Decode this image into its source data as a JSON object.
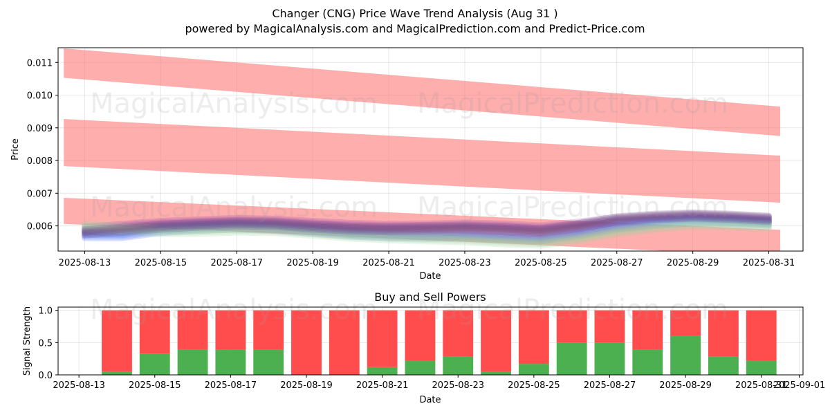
{
  "titles": {
    "main": "Changer (CNG) Price Wave Trend Analysis (Aug 31 )",
    "sub": "powered by MagicalAnalysis.com and MagicalPrediction.com and Predict-Price.com"
  },
  "watermarks": [
    "MagicalAnalysis.com",
    "MagicalPrediction.com"
  ],
  "colors": {
    "band": "#ff6b6b",
    "buy": "#4caf50",
    "sell": "#ff4d4d",
    "wave_purple": "#8e44ad",
    "wave_blue": "#4a6cf7",
    "wave_green": "#9fd3a0"
  },
  "chart_data": [
    {
      "type": "line",
      "title": "",
      "xlabel": "Date",
      "ylabel": "Price",
      "ylim": [
        0.00523,
        0.01145
      ],
      "xlim": [
        "2025-08-12",
        "2025-09-01"
      ],
      "x_ticks": [
        "2025-08-13",
        "2025-08-15",
        "2025-08-17",
        "2025-08-19",
        "2025-08-21",
        "2025-08-23",
        "2025-08-25",
        "2025-08-27",
        "2025-08-29",
        "2025-08-31"
      ],
      "y_ticks": [
        "0.006",
        "0.007",
        "0.008",
        "0.009",
        "0.010",
        "0.011"
      ],
      "grid": true,
      "bands": [
        {
          "name": "",
          "x": [
            "2025-08-12",
            "2025-08-31"
          ],
          "center": [
            0.01098,
            0.0092
          ],
          "half_width": 0.00045
        },
        {
          "name": "",
          "x": [
            "2025-08-12",
            "2025-08-31"
          ],
          "center": [
            0.00855,
            0.00743
          ],
          "half_width": 0.00072
        },
        {
          "name": "",
          "x": [
            "2025-08-12",
            "2025-08-31"
          ],
          "center": [
            0.00646,
            0.00548
          ],
          "half_width": 0.0004
        }
      ],
      "series": [
        {
          "color": "#8e44ad",
          "x": [
            "2025-08-13",
            "2025-08-14",
            "2025-08-15",
            "2025-08-16",
            "2025-08-17",
            "2025-08-18",
            "2025-08-19",
            "2025-08-20",
            "2025-08-21",
            "2025-08-22",
            "2025-08-23",
            "2025-08-24",
            "2025-08-25",
            "2025-08-26",
            "2025-08-27",
            "2025-08-28",
            "2025-08-29",
            "2025-08-30",
            "2025-08-31"
          ],
          "values": [
            0.00588,
            0.00597,
            0.00606,
            0.00611,
            0.00615,
            0.00613,
            0.00606,
            0.006,
            0.00597,
            0.00598,
            0.00601,
            0.00598,
            0.00592,
            0.00604,
            0.00618,
            0.00625,
            0.0063,
            0.00626,
            0.0062
          ]
        },
        {
          "color": "#4a6cf7",
          "x": [
            "2025-08-13",
            "2025-08-14",
            "2025-08-15",
            "2025-08-16",
            "2025-08-17",
            "2025-08-18",
            "2025-08-19",
            "2025-08-20",
            "2025-08-21",
            "2025-08-22",
            "2025-08-23",
            "2025-08-24",
            "2025-08-25",
            "2025-08-26",
            "2025-08-27",
            "2025-08-28",
            "2025-08-29",
            "2025-08-30",
            "2025-08-31"
          ],
          "values": [
            0.00572,
            0.00572,
            0.00588,
            0.00595,
            0.00598,
            0.00594,
            0.00585,
            0.00577,
            0.00572,
            0.0057,
            0.00571,
            0.00567,
            0.00562,
            0.00578,
            0.00598,
            0.0061,
            0.00617,
            0.00615,
            0.0061
          ]
        },
        {
          "color": "#9fd3a0",
          "x": [
            "2025-08-13",
            "2025-08-14",
            "2025-08-15",
            "2025-08-16",
            "2025-08-17",
            "2025-08-18",
            "2025-08-19",
            "2025-08-20",
            "2025-08-21",
            "2025-08-22",
            "2025-08-23",
            "2025-08-24",
            "2025-08-25",
            "2025-08-26",
            "2025-08-27",
            "2025-08-28",
            "2025-08-29",
            "2025-08-30",
            "2025-08-31"
          ],
          "values": [
            0.00598,
            0.00592,
            0.00584,
            0.00585,
            0.00589,
            0.00587,
            0.00579,
            0.0057,
            0.00565,
            0.00562,
            0.00559,
            0.00553,
            0.00549,
            0.00562,
            0.00583,
            0.00597,
            0.00606,
            0.00604,
            0.006
          ]
        },
        {
          "color": "#6d4c7d",
          "x": [
            "2025-08-13",
            "2025-08-14",
            "2025-08-15",
            "2025-08-16",
            "2025-08-17",
            "2025-08-18",
            "2025-08-19",
            "2025-08-20",
            "2025-08-21",
            "2025-08-22",
            "2025-08-23",
            "2025-08-24",
            "2025-08-25",
            "2025-08-26",
            "2025-08-27",
            "2025-08-28",
            "2025-08-29",
            "2025-08-30",
            "2025-08-31"
          ],
          "values": [
            0.0058,
            0.00588,
            0.00598,
            0.00604,
            0.00608,
            0.00606,
            0.00598,
            0.00592,
            0.0059,
            0.00592,
            0.00594,
            0.0059,
            0.00584,
            0.006,
            0.0062,
            0.00628,
            0.00632,
            0.00628,
            0.00622
          ]
        }
      ]
    },
    {
      "type": "bar",
      "title": "Buy and Sell Powers",
      "xlabel": "Date",
      "ylabel": "Signal Strength",
      "ylim": [
        0,
        1.05
      ],
      "x_ticks": [
        "2025-08-13",
        "2025-08-15",
        "2025-08-17",
        "2025-08-19",
        "2025-08-21",
        "2025-08-23",
        "2025-08-25",
        "2025-08-27",
        "2025-08-29",
        "2025-08-31",
        "2025-09-01"
      ],
      "y_ticks": [
        "0.0",
        "0.5",
        "1.0"
      ],
      "grid": true,
      "categories": [
        "2025-08-14",
        "2025-08-15",
        "2025-08-16",
        "2025-08-17",
        "2025-08-18",
        "2025-08-19",
        "2025-08-20",
        "2025-08-21",
        "2025-08-22",
        "2025-08-23",
        "2025-08-24",
        "2025-08-25",
        "2025-08-26",
        "2025-08-27",
        "2025-08-28",
        "2025-08-29",
        "2025-08-30",
        "2025-08-31"
      ],
      "series": [
        {
          "color": "#4caf50",
          "values": [
            0.05,
            0.33,
            0.39,
            0.39,
            0.39,
            0.0,
            0.0,
            0.12,
            0.22,
            0.28,
            0.05,
            0.17,
            0.5,
            0.5,
            0.39,
            0.61,
            0.28,
            0.22
          ]
        },
        {
          "color": "#ff4d4d",
          "values": [
            0.95,
            0.67,
            0.61,
            0.61,
            0.61,
            1.0,
            1.0,
            0.88,
            0.78,
            0.72,
            0.95,
            0.83,
            0.5,
            0.5,
            0.61,
            0.39,
            0.72,
            0.78
          ]
        }
      ]
    }
  ]
}
